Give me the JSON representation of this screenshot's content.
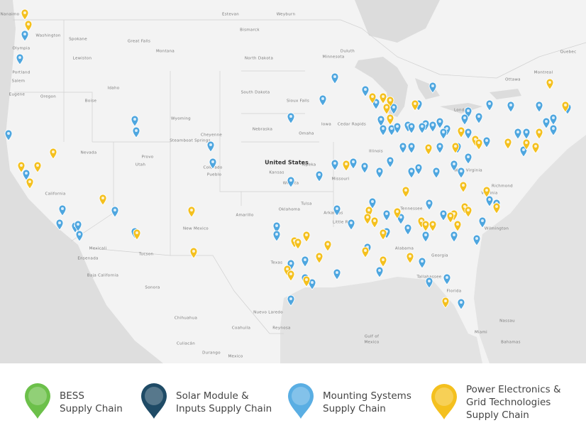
{
  "map": {
    "labels": [
      "Nanaimo",
      "Washington",
      "Olympia",
      "Spokane",
      "Great Falls",
      "Montana",
      "Lewiston",
      "Portland",
      "Salem",
      "Eugene",
      "Oregon",
      "Boise",
      "Idaho",
      "Wyoming",
      "Steamboat Springs",
      "Cheyenne",
      "Nevada",
      "Utah",
      "Provo",
      "Colorado",
      "Pueblo",
      "California",
      "Mexicali",
      "Ensenada",
      "Baja California",
      "Sonora",
      "Tucson",
      "New Mexico",
      "Amarillo",
      "Chihuahua",
      "Coahuila",
      "Nuevo Laredo",
      "Reynosa",
      "Culiacán",
      "Durango",
      "Mexico",
      "Texas",
      "Oklahoma",
      "Tulsa",
      "Kansas",
      "Wichita",
      "Topeka",
      "Nebraska",
      "Omaha",
      "Sioux Falls",
      "South Dakota",
      "North Dakota",
      "Bismarck",
      "Estevan",
      "Weyburn",
      "Minnesota",
      "Duluth",
      "Iowa",
      "Cedar Rapids",
      "Missouri",
      "Illinois",
      "Little Rock",
      "Arkansas",
      "Tennessee",
      "Alabama",
      "Georgia",
      "Tallahassee",
      "Florida",
      "Miami",
      "Nassau",
      "Bahamas",
      "Gulf of",
      "Mexico",
      "West Virginia",
      "Richmond",
      "Virginia",
      "Wilmington",
      "London",
      "Ottawa",
      "Montreal",
      "Quebec",
      "United States"
    ]
  },
  "legend": {
    "items": [
      {
        "lines": [
          "BESS",
          "Supply Chain"
        ]
      },
      {
        "lines": [
          "Solar Module &",
          "Inputs Supply Chain"
        ]
      },
      {
        "lines": [
          "Mounting Systems",
          "Supply Chain"
        ]
      },
      {
        "lines": [
          "Power Electronics &",
          "Grid Technologies",
          "Supply Chain"
        ]
      }
    ]
  }
}
